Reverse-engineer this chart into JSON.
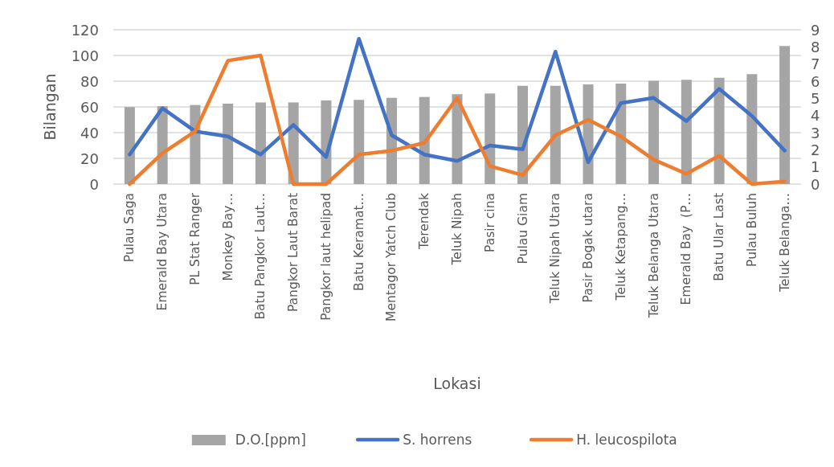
{
  "chart_data": {
    "type": "bar",
    "xlabel": "Lokasi",
    "ylabel": "Bilangan",
    "categories": [
      "Pulau Saga",
      "Emerald Bay Utara",
      "PL Stat Ranger",
      "Monkey Bay…",
      "Batu Pangkor Laut…",
      "Pangkor Laut Barat",
      "Pangkor laut helipad",
      "Batu Keramat…",
      "Mentagor Yatch Club",
      "Terendak",
      "Teluk Nipah",
      "Pasir cina",
      "Pulau Giam",
      "Teluk Nipah Utara",
      "Pasir Bogak utara",
      "Teluk Ketapang…",
      "Teluk Belanga Utara",
      "Emerald Bay  (P…",
      "Batu Ular Last",
      "Pulau Buluh",
      "Teluk Belanga…"
    ],
    "series": [
      {
        "name": "D.O.[ppm]",
        "axis": "y2",
        "color": "#a5a5a5",
        "values": [
          4.49,
          4.54,
          4.61,
          4.69,
          4.76,
          4.76,
          4.88,
          4.91,
          5.03,
          5.08,
          5.24,
          5.28,
          5.73,
          5.73,
          5.81,
          5.86,
          6.02,
          6.08,
          6.2,
          6.41,
          8.05
        ]
      },
      {
        "name": "S. horrens",
        "type": "line",
        "color": "#4472c4",
        "values": [
          23,
          59,
          41,
          37,
          23,
          46,
          21,
          113,
          38,
          23,
          18,
          30,
          27,
          103,
          17,
          63,
          67,
          49,
          74,
          53,
          26
        ]
      },
      {
        "name": "H. leucospilota",
        "type": "line",
        "color": "#ed7d31",
        "values": [
          0,
          24,
          41,
          96,
          100,
          0,
          0,
          23,
          26,
          32,
          67,
          14,
          7,
          38,
          50,
          37,
          19,
          8,
          22,
          0,
          2
        ]
      }
    ],
    "ylim": [
      0,
      120
    ],
    "yticks": [
      0,
      20,
      40,
      60,
      80,
      100,
      120
    ],
    "y2lim": [
      0,
      9
    ],
    "y2ticks": [
      0,
      1,
      2,
      3,
      4,
      5,
      6,
      7,
      8,
      9
    ],
    "grid": "y",
    "legend": "bottom"
  }
}
